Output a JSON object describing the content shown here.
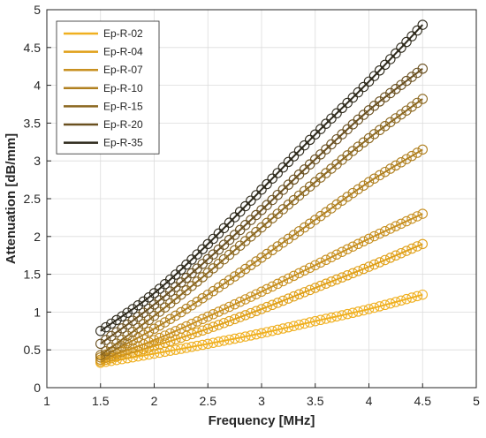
{
  "chart_data": {
    "type": "line",
    "title": "",
    "xlabel": "Frequency [MHz]",
    "ylabel": "Attenuation [dB/mm]",
    "xlim": [
      1,
      5
    ],
    "ylim": [
      0,
      5
    ],
    "xticks": [
      "1",
      "1.5",
      "2",
      "2.5",
      "3",
      "3.5",
      "4",
      "4.5",
      "5"
    ],
    "yticks": [
      "0",
      "0.5",
      "1",
      "1.5",
      "2",
      "2.5",
      "3",
      "3.5",
      "4",
      "4.5",
      "5"
    ],
    "grid": true,
    "legend_position": "top-left",
    "markers": "open-circle",
    "x_range": [
      1.5,
      4.5
    ],
    "series": [
      {
        "name": "Ep-R-02",
        "color": "#f0b020",
        "x": [
          1.5,
          2.0,
          2.5,
          3.0,
          3.5,
          4.0,
          4.5
        ],
        "y": [
          0.33,
          0.45,
          0.58,
          0.72,
          0.88,
          1.04,
          1.23
        ]
      },
      {
        "name": "Ep-R-04",
        "color": "#e0a018",
        "x": [
          1.5,
          2.0,
          2.5,
          3.0,
          3.5,
          4.0,
          4.5
        ],
        "y": [
          0.35,
          0.55,
          0.78,
          1.04,
          1.32,
          1.6,
          1.9
        ]
      },
      {
        "name": "Ep-R-07",
        "color": "#c89020",
        "x": [
          1.5,
          2.0,
          2.5,
          3.0,
          3.5,
          4.0,
          4.5
        ],
        "y": [
          0.37,
          0.63,
          0.94,
          1.27,
          1.62,
          1.97,
          2.3
        ]
      },
      {
        "name": "Ep-R-10",
        "color": "#b08020",
        "x": [
          1.5,
          2.0,
          2.5,
          3.0,
          3.5,
          4.0,
          4.5
        ],
        "y": [
          0.4,
          0.78,
          1.23,
          1.72,
          2.22,
          2.72,
          3.15
        ]
      },
      {
        "name": "Ep-R-15",
        "color": "#8c6820",
        "x": [
          1.5,
          2.0,
          2.5,
          3.0,
          3.5,
          4.0,
          4.5
        ],
        "y": [
          0.43,
          0.95,
          1.52,
          2.12,
          2.72,
          3.3,
          3.82
        ]
      },
      {
        "name": "Ep-R-20",
        "color": "#6a5020",
        "x": [
          1.5,
          2.0,
          2.5,
          3.0,
          3.5,
          4.0,
          4.5
        ],
        "y": [
          0.58,
          1.1,
          1.7,
          2.35,
          3.02,
          3.67,
          4.22
        ]
      },
      {
        "name": "Ep-R-35",
        "color": "#2e2a1c",
        "x": [
          1.5,
          2.0,
          2.5,
          3.0,
          3.5,
          4.0,
          4.5
        ],
        "y": [
          0.75,
          1.25,
          1.9,
          2.62,
          3.35,
          4.05,
          4.8
        ]
      }
    ]
  }
}
